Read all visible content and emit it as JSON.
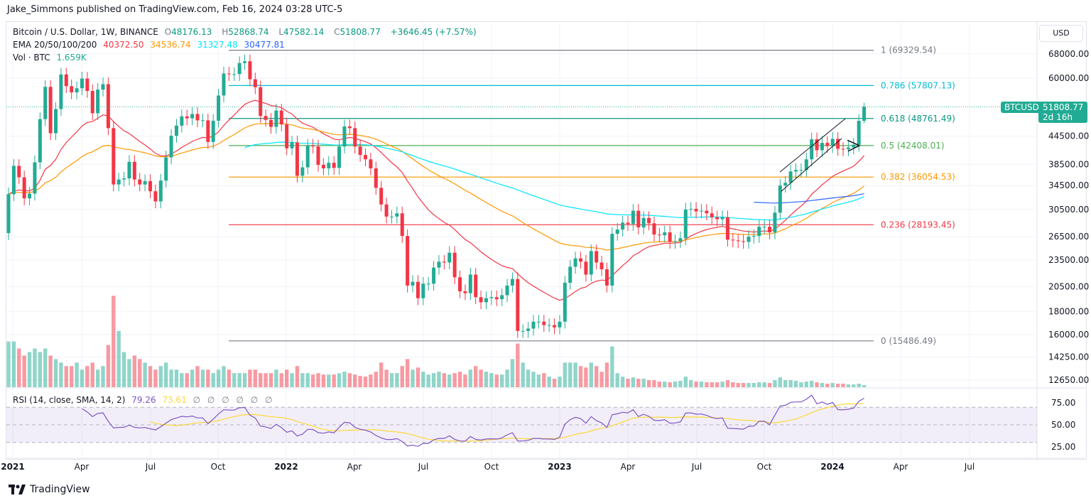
{
  "header": {
    "published": "Jake_Simmons published on TradingView.com, Feb 16, 2024 03:28 UTC-5"
  },
  "legend": {
    "symbol": "Bitcoin / U.S. Dollar, 1W, BINANCE",
    "o_label": "O",
    "o": "48176.13",
    "h_label": "H",
    "h": "52868.74",
    "l_label": "L",
    "l": "47582.14",
    "c_label": "C",
    "c": "51808.77",
    "change": "+3646.45 (+7.57%)",
    "ema_label": "EMA 20/50/100/200",
    "ema20": "40372.50",
    "ema50": "34536.74",
    "ema100": "31327.48",
    "ema200": "30477.81",
    "vol_label": "Vol · BTC",
    "vol": "1.659K",
    "rsi_label": "RSI (14, close, SMA, 14, 2)",
    "rsi": "79.26",
    "rsi_sma": "73.61",
    "rsi_na": "∅ ∅ ∅ ∅ ∅ ∅"
  },
  "toolbar": {
    "currency": "USD"
  },
  "price_tag": {
    "symbol": "BTCUSD",
    "price": "51808.77",
    "countdown": "2d 16h"
  },
  "brand": "TradingView",
  "colors": {
    "up": "#22ab94",
    "down": "#f23645",
    "ema20": "#f23645",
    "ema50": "#ff9800",
    "ema100": "#00e5ff",
    "ema200": "#2962ff",
    "rsi": "#7e57c2",
    "rsi_sma": "#fdd835"
  },
  "chart_data": {
    "type": "candlestick",
    "scale": "log",
    "ylim": [
      12000,
      72000
    ],
    "grid": true,
    "y_ticks": [
      "68000.00",
      "60000.00",
      "44500.00",
      "38500.00",
      "34500.00",
      "30500.00",
      "26500.00",
      "23500.00",
      "20500.00",
      "18000.00",
      "16000.00",
      "14250.00",
      "12650.00"
    ],
    "x_ticks": [
      "2021",
      "Apr",
      "Jul",
      "Oct",
      "2022",
      "Apr",
      "Jul",
      "Oct",
      "2023",
      "Apr",
      "Jul",
      "Oct",
      "2024",
      "Apr",
      "Jul"
    ],
    "rsi_ticks": [
      "75.00",
      "50.00",
      "25.00"
    ],
    "last_candle": {
      "open": 48176.13,
      "high": 52868.74,
      "low": 47582.14,
      "close": 51808.77
    },
    "weekly_close": [
      33000,
      38200,
      36000,
      32300,
      33100,
      38900,
      48600,
      57400,
      45200,
      51200,
      61200,
      57600,
      55800,
      57000,
      59900,
      56200,
      50100,
      56600,
      58200,
      46400,
      34700,
      35600,
      35800,
      39000,
      35600,
      34700,
      35300,
      33500,
      31800,
      35400,
      39900,
      44600,
      47000,
      49300,
      48800,
      49900,
      48300,
      48300,
      43200,
      48200,
      54900,
      61500,
      61300,
      61300,
      64900,
      65500,
      59700,
      57300,
      49400,
      48400,
      46700,
      50800,
      47300,
      41800,
      43100,
      36300,
      37900,
      42400,
      42200,
      38400,
      37700,
      38800,
      37800,
      42200,
      46800,
      46400,
      42200,
      40400,
      39500,
      37700,
      34100,
      31300,
      29400,
      29400,
      29900,
      26600,
      20600,
      21000,
      19300,
      20800,
      20800,
      22600,
      23300,
      23200,
      24400,
      21500,
      20000,
      19800,
      21800,
      19400,
      18900,
      19300,
      19400,
      19200,
      19600,
      20600,
      21300,
      16300,
      16300,
      16500,
      17100,
      17100,
      16800,
      16800,
      16600,
      17100,
      20900,
      22700,
      23700,
      23300,
      21800,
      24600,
      23200,
      22400,
      20600,
      26900,
      27500,
      28500,
      28300,
      30300,
      27800,
      29200,
      28400,
      26800,
      26700,
      27100,
      25800,
      25900,
      26300,
      30500,
      30600,
      30200,
      30300,
      29900,
      29300,
      29000,
      29300,
      26100,
      26000,
      25900,
      25800,
      26500,
      26600,
      27900,
      27900,
      27100,
      30000,
      34500,
      35000,
      37100,
      37400,
      37400,
      39500,
      43800,
      41400,
      43000,
      42300,
      43900,
      41700,
      41600,
      42000,
      42600,
      48176.13,
      51808.77
    ],
    "weekly_volume": [
      65,
      65,
      55,
      45,
      50,
      55,
      50,
      55,
      45,
      40,
      35,
      30,
      30,
      35,
      25,
      30,
      35,
      25,
      30,
      60,
      130,
      80,
      50,
      40,
      45,
      40,
      35,
      30,
      25,
      30,
      35,
      25,
      25,
      20,
      20,
      25,
      30,
      25,
      25,
      20,
      25,
      30,
      25,
      20,
      20,
      20,
      25,
      25,
      20,
      20,
      20,
      25,
      20,
      25,
      20,
      30,
      20,
      20,
      18,
      20,
      18,
      18,
      18,
      20,
      22,
      20,
      18,
      16,
      15,
      18,
      22,
      35,
      25,
      20,
      20,
      30,
      40,
      25,
      28,
      22,
      18,
      20,
      22,
      20,
      18,
      20,
      22,
      18,
      25,
      30,
      25,
      22,
      20,
      18,
      18,
      25,
      40,
      62,
      35,
      25,
      22,
      18,
      20,
      15,
      12,
      15,
      35,
      35,
      35,
      30,
      28,
      35,
      30,
      22,
      35,
      58,
      20,
      15,
      12,
      14,
      12,
      12,
      10,
      10,
      8,
      8,
      7,
      8,
      9,
      15,
      10,
      8,
      8,
      7,
      7,
      7,
      8,
      10,
      7,
      6,
      6,
      6,
      6,
      7,
      7,
      6,
      10,
      14,
      10,
      10,
      9,
      7,
      8,
      9,
      7,
      6,
      5,
      6,
      5,
      5,
      4,
      4,
      5,
      3
    ],
    "fibonacci": [
      {
        "level": "1",
        "price": "69329.54",
        "color": "#787b86"
      },
      {
        "level": "0.786",
        "price": "57807.13",
        "color": "#00bcd4"
      },
      {
        "level": "0.618",
        "price": "48761.49",
        "color": "#089981"
      },
      {
        "level": "0.5",
        "price": "42408.01",
        "color": "#4caf50"
      },
      {
        "level": "0.382",
        "price": "36054.53",
        "color": "#ff9800"
      },
      {
        "level": "0.236",
        "price": "28193.45",
        "color": "#f23645"
      },
      {
        "level": "0",
        "price": "15486.49",
        "color": "#787b86"
      }
    ]
  }
}
